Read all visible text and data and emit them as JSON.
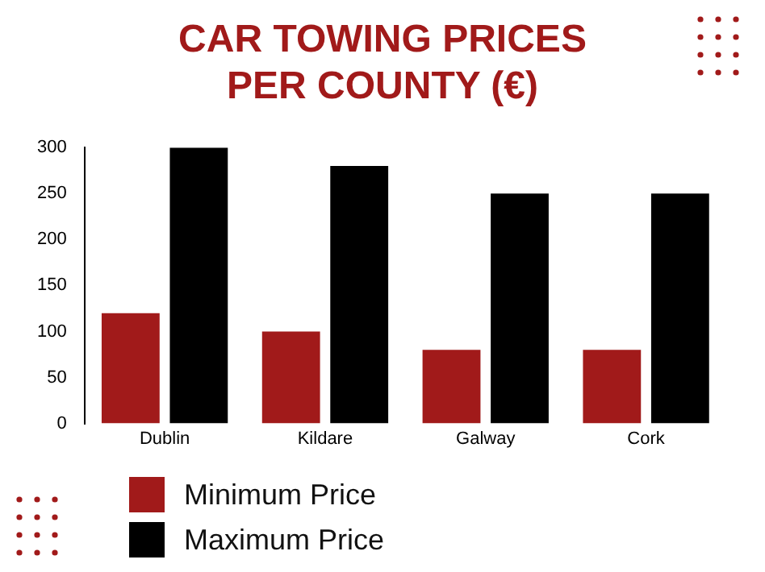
{
  "chart_data": {
    "type": "bar",
    "title": "CAR TOWING PRICES PER COUNTY (€)",
    "categories": [
      "Dublin",
      "Kildare",
      "Galway",
      "Cork"
    ],
    "series": [
      {
        "name": "Minimum Price",
        "color": "#a11a1a",
        "values": [
          120,
          100,
          80,
          80
        ]
      },
      {
        "name": "Maximum Price",
        "color": "#000000",
        "values": [
          300,
          280,
          250,
          250
        ]
      }
    ],
    "ylim": [
      0,
      300
    ],
    "yticks": [
      0,
      50,
      100,
      150,
      200,
      250,
      300
    ],
    "grid": false,
    "legend": "bottom left"
  }
}
